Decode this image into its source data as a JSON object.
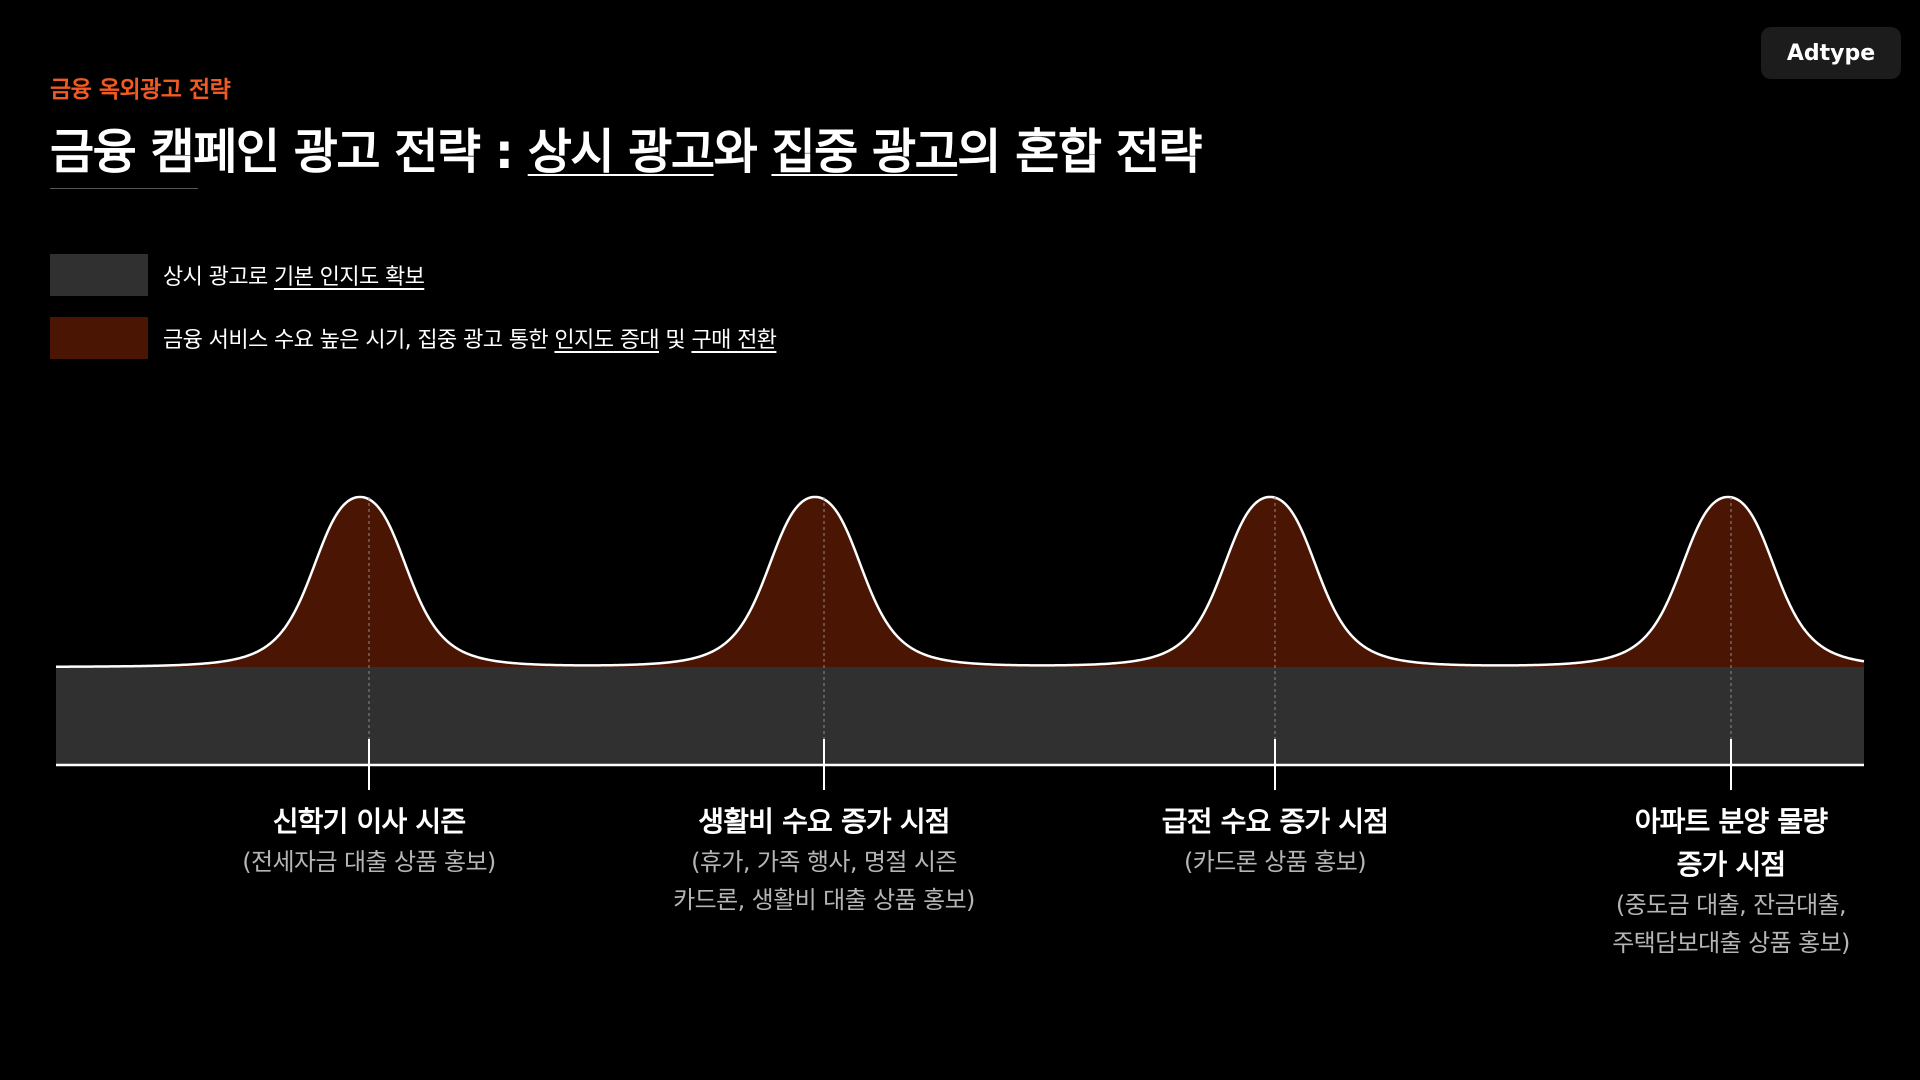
{
  "brand": "Adtype",
  "eyebrow": "금융 옥외광고 전략",
  "title": {
    "part1": "금융 캠페인 광고 전략 : ",
    "u1": "상시 광고",
    "part2": "와 ",
    "u2": "집중 광고",
    "part3": "의 혼합 전략"
  },
  "legend": [
    {
      "color": "#303030",
      "text_a": "상시 광고로 ",
      "text_u1": "기본 인지도 확보",
      "text_b": "",
      "text_u2": "",
      "text_c": "",
      "text_u3": ""
    },
    {
      "color": "#4a1603",
      "text_a": "금융 서비스 수요 높은 시기, 집중 광고 통한 ",
      "text_u1": "인지도 증대",
      "text_b": " 및 ",
      "text_u2": "구매 전환",
      "text_c": "",
      "text_u3": ""
    }
  ],
  "chart_data": {
    "type": "area",
    "title": "",
    "xlabel": "",
    "ylabel": "",
    "baseline_series": "상시 광고로 기본 인지도 확보",
    "peak_series": "금융 서비스 수요 높은 시기, 집중 광고 통한 인지도 증대 및 구매 전환",
    "peaks": [
      {
        "label": "신학기 이사 시즌",
        "desc": "(전세자금 대출 상품 홍보)"
      },
      {
        "label": "생활비 수요 증가 시점",
        "desc": "(휴가, 가족 행사, 명절 시즌\n카드론, 생활비 대출 상품 홍보)"
      },
      {
        "label": "급전 수요 증가 시점",
        "desc": "(카드론 상품 홍보)"
      },
      {
        "label": "아파트 분양 물량\n증가 시점",
        "desc": "(중도금 대출, 잔금대출,\n주택담보대출 상품 홍보)"
      }
    ],
    "colors": {
      "baseline": "#303030",
      "peak_fill": "#4a1603",
      "curve": "#ffffff",
      "accent": "#f15a22"
    }
  }
}
